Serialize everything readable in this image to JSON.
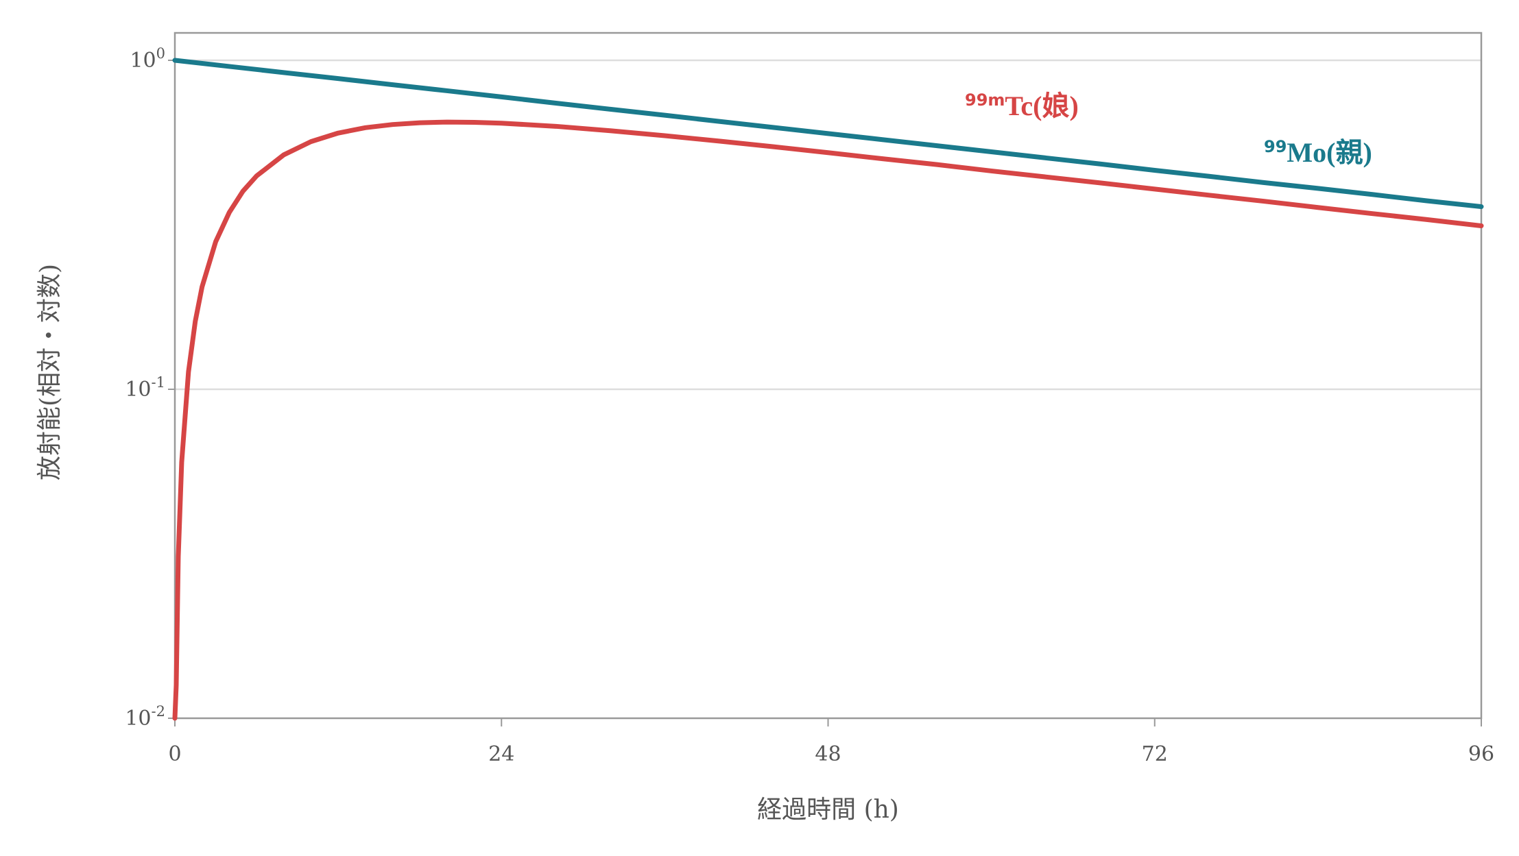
{
  "chart_data": {
    "type": "line",
    "xlabel": "経過時間 (h)",
    "ylabel": "放射能(相対・対数)",
    "xlim": [
      0,
      96
    ],
    "ylim": [
      0.01,
      1
    ],
    "yscale": "log",
    "grid": "horizontal at y-ticks",
    "x_ticks": [
      "0",
      "24",
      "48",
      "72",
      "96"
    ],
    "y_ticks": [
      {
        "value": 1,
        "base": "10",
        "exp": "0"
      },
      {
        "value": 0.1,
        "base": "10",
        "exp": "-1"
      },
      {
        "value": 0.01,
        "base": "10",
        "exp": "-2"
      }
    ],
    "series": [
      {
        "name": "99Mo(親)",
        "label_mass": "99",
        "label_meta": "",
        "label_main": "Mo(親)",
        "color": "#1a7a8c",
        "x": [
          0,
          4,
          8,
          12,
          16,
          20,
          24,
          28,
          32,
          36,
          40,
          44,
          48,
          52,
          56,
          60,
          64,
          68,
          72,
          76,
          80,
          84,
          88,
          92,
          96
        ],
        "y": [
          1.0,
          0.958,
          0.918,
          0.88,
          0.843,
          0.808,
          0.774,
          0.741,
          0.71,
          0.681,
          0.652,
          0.625,
          0.599,
          0.574,
          0.55,
          0.527,
          0.505,
          0.484,
          0.463,
          0.444,
          0.425,
          0.408,
          0.391,
          0.374,
          0.359
        ]
      },
      {
        "name": "99mTc(娘)",
        "label_mass": "99",
        "label_meta": "m",
        "label_main": "Tc(娘)",
        "color": "#d64545",
        "x": [
          0,
          0.1,
          0.25,
          0.5,
          1,
          1.5,
          2,
          3,
          4,
          5,
          6,
          8,
          10,
          12,
          14,
          16,
          18,
          20,
          22,
          24,
          28,
          32,
          36,
          40,
          44,
          48,
          52,
          56,
          60,
          64,
          68,
          72,
          76,
          80,
          84,
          88,
          92,
          96
        ],
        "y": [
          0.01,
          0.0126,
          0.031,
          0.06,
          0.113,
          0.161,
          0.205,
          0.281,
          0.345,
          0.4,
          0.445,
          0.516,
          0.566,
          0.601,
          0.624,
          0.638,
          0.646,
          0.649,
          0.648,
          0.644,
          0.63,
          0.611,
          0.59,
          0.568,
          0.546,
          0.524,
          0.502,
          0.482,
          0.461,
          0.442,
          0.424,
          0.406,
          0.389,
          0.373,
          0.357,
          0.342,
          0.328,
          0.314
        ]
      }
    ]
  }
}
